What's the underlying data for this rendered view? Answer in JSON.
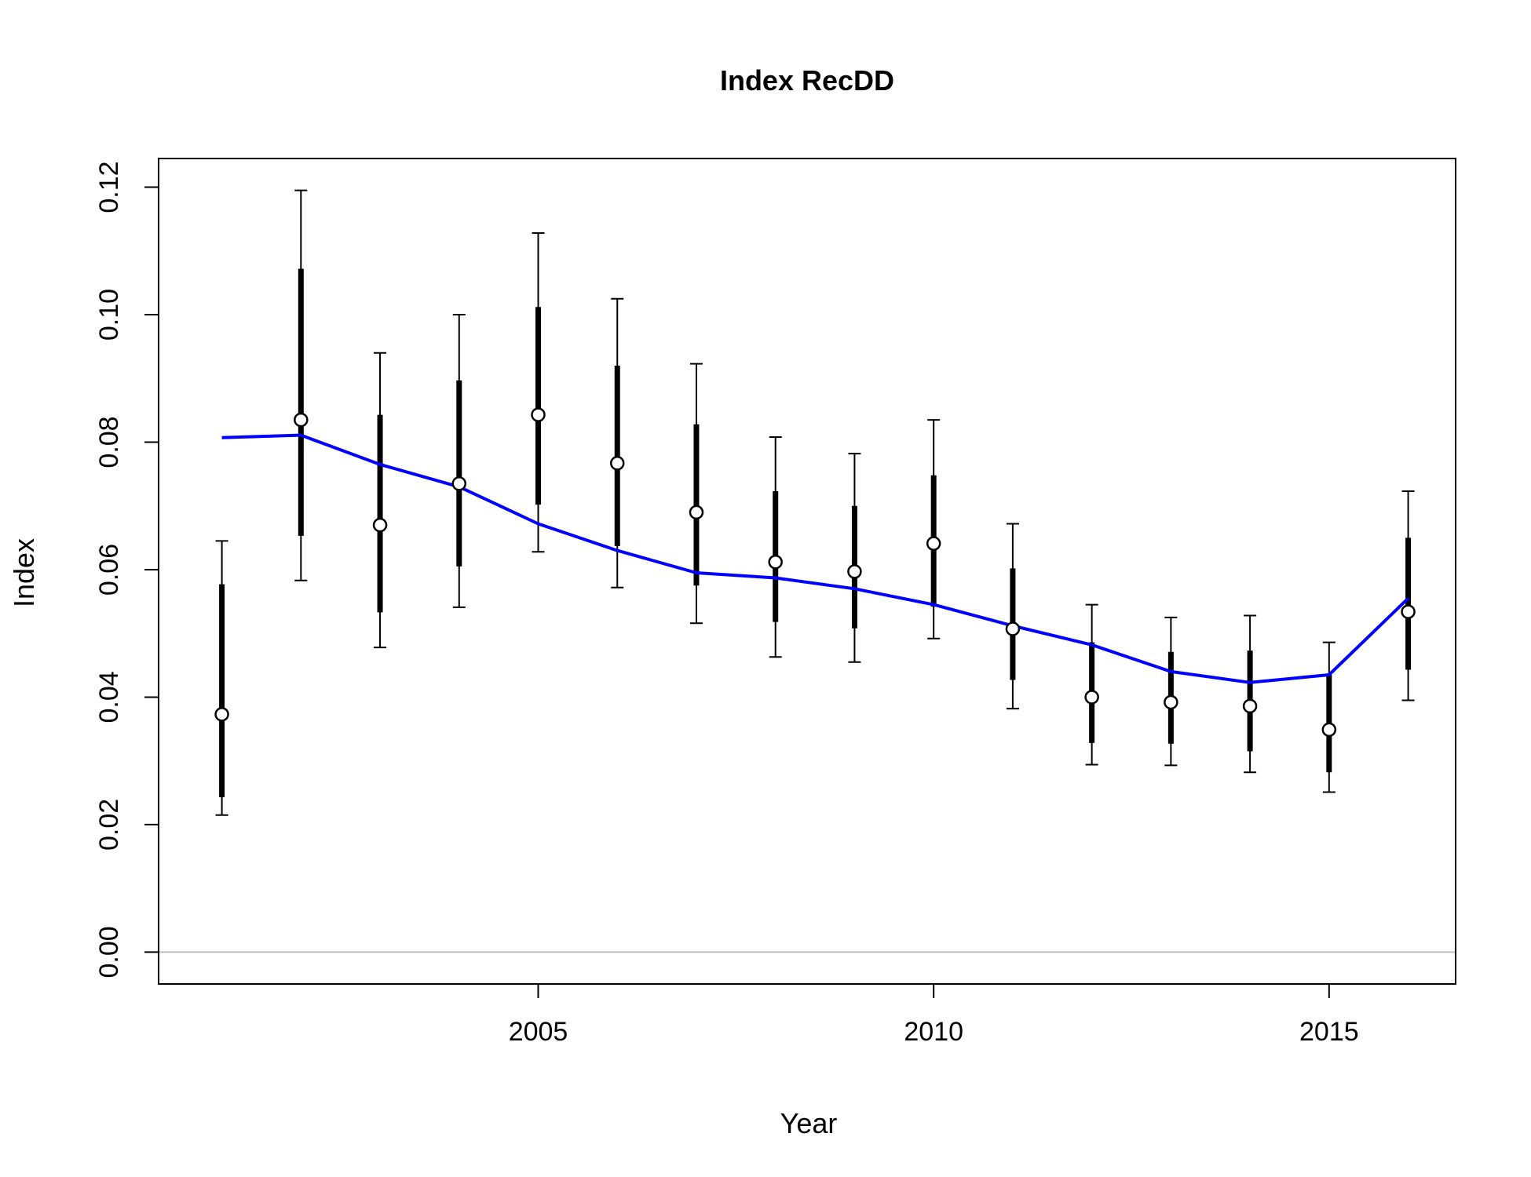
{
  "chart_data": {
    "type": "line",
    "title": "Index RecDD",
    "xlabel": "Year",
    "ylabel": "Index",
    "xlim": [
      2000.2,
      2016.6
    ],
    "ylim": [
      -0.005,
      0.1245
    ],
    "x_ticks": [
      2005,
      2010,
      2015
    ],
    "x_tick_labels": [
      "2005",
      "2010",
      "2015"
    ],
    "y_ticks": [
      0,
      0.02,
      0.04,
      0.06,
      0.08,
      0.1,
      0.12
    ],
    "y_tick_labels": [
      "0.00",
      "0.02",
      "0.04",
      "0.06",
      "0.08",
      "0.10",
      "0.12"
    ],
    "reference_line_y": 0,
    "x": [
      2001,
      2002,
      2003,
      2004,
      2005,
      2006,
      2007,
      2008,
      2009,
      2010,
      2011,
      2012,
      2013,
      2014,
      2015,
      2016
    ],
    "observed": {
      "values": [
        0.0373,
        0.0835,
        0.067,
        0.0735,
        0.0843,
        0.0767,
        0.069,
        0.0612,
        0.0597,
        0.0641,
        0.0507,
        0.04,
        0.0392,
        0.0386,
        0.0349,
        0.0534
      ],
      "inner_lower": [
        0.0243,
        0.0653,
        0.0533,
        0.0605,
        0.0702,
        0.0637,
        0.0575,
        0.0518,
        0.0508,
        0.0542,
        0.0427,
        0.0328,
        0.0327,
        0.0315,
        0.0282,
        0.0443
      ],
      "inner_upper": [
        0.0577,
        0.1072,
        0.0843,
        0.0897,
        0.1012,
        0.092,
        0.0828,
        0.0723,
        0.07,
        0.0748,
        0.0602,
        0.0486,
        0.0471,
        0.0473,
        0.0435,
        0.065
      ],
      "outer_lower": [
        0.0215,
        0.0583,
        0.0478,
        0.0541,
        0.0628,
        0.0572,
        0.0516,
        0.0463,
        0.0455,
        0.0492,
        0.0382,
        0.0294,
        0.0293,
        0.0282,
        0.0251,
        0.0395
      ],
      "outer_upper": [
        0.0645,
        0.1195,
        0.094,
        0.1,
        0.1128,
        0.1025,
        0.0923,
        0.0808,
        0.0782,
        0.0835,
        0.0672,
        0.0545,
        0.0525,
        0.0528,
        0.0486,
        0.0723
      ],
      "color": "#000000",
      "marker_fill": "#ffffff"
    },
    "expected": {
      "values": [
        0.0807,
        0.0811,
        0.0765,
        0.073,
        0.0672,
        0.063,
        0.0595,
        0.0587,
        0.057,
        0.0545,
        0.0512,
        0.0482,
        0.044,
        0.0423,
        0.0435,
        0.0555
      ],
      "color": "#0000ff"
    },
    "grid": false,
    "reference_line_color": "#bebebe"
  }
}
